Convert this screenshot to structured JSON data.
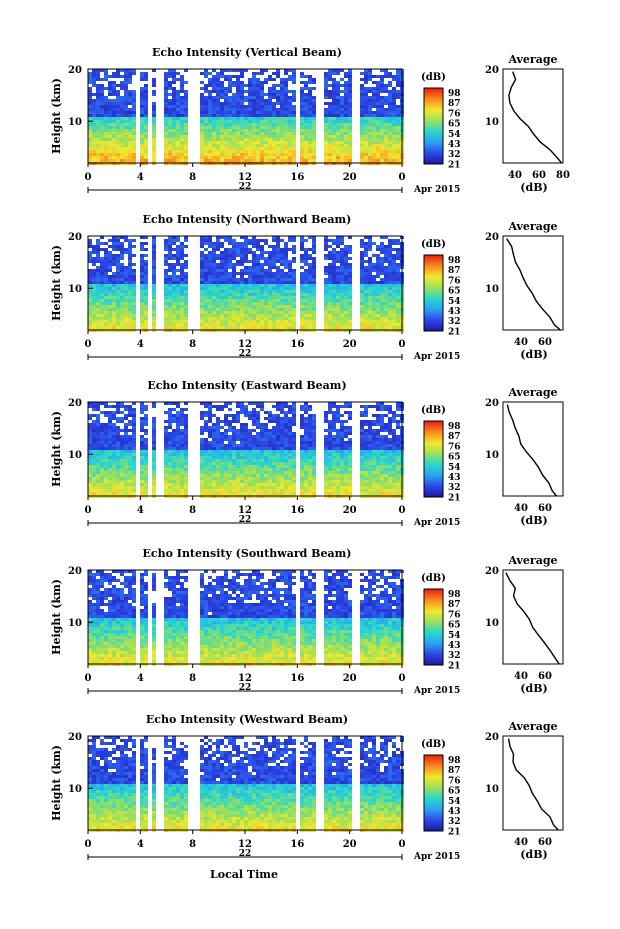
{
  "figure": {
    "xlabel": "Local Time",
    "date_label": "22",
    "month_label": "Apr 2015",
    "ylabel": "Height (km)",
    "colorbar_unit": "(dB)",
    "colorbar_ticks": [
      "98",
      "87",
      "76",
      "65",
      "54",
      "43",
      "32",
      "21"
    ],
    "avg_title": "Average",
    "avg_xlabel": "(dB)"
  },
  "chart_data": [
    {
      "type": "heatmap",
      "title": "Echo Intensity (Vertical Beam)",
      "xlabel": "Local Time",
      "ylabel": "Height (km)",
      "x_ticks": [
        "0",
        "4",
        "8",
        "12",
        "16",
        "20",
        "0"
      ],
      "y_ticks": [
        "20",
        "10"
      ],
      "xlim": [
        0,
        24
      ],
      "ylim": [
        2,
        20
      ],
      "colorbar": {
        "label": "(dB)",
        "range": [
          21,
          98
        ],
        "ticks": [
          98,
          87,
          76,
          65,
          54,
          43,
          32,
          21
        ]
      },
      "gaps_hours": [
        [
          3.5,
          3.9
        ],
        [
          4.5,
          4.8
        ],
        [
          5.0,
          5.8
        ],
        [
          7.6,
          8.4
        ],
        [
          15.8,
          16.2
        ],
        [
          17.4,
          17.8
        ],
        [
          20.0,
          20.5
        ]
      ],
      "profile": {
        "title": "Average",
        "xlabel": "(dB)",
        "xlim": [
          30,
          80
        ],
        "x_ticks": [
          "40",
          "60",
          "80"
        ],
        "height": [
          19.5,
          18,
          16.5,
          15,
          13.5,
          12,
          10.5,
          9,
          7.5,
          6,
          4.5,
          3,
          2
        ],
        "value": [
          38,
          40,
          36,
          34,
          36,
          40,
          44,
          50,
          56,
          62,
          70,
          76,
          80
        ]
      }
    },
    {
      "type": "heatmap",
      "title": "Echo Intensity (Northward Beam)",
      "xlabel": "Local Time",
      "ylabel": "Height (km)",
      "x_ticks": [
        "0",
        "4",
        "8",
        "12",
        "16",
        "20",
        "0"
      ],
      "y_ticks": [
        "20",
        "10"
      ],
      "xlim": [
        0,
        24
      ],
      "ylim": [
        2,
        20
      ],
      "colorbar": {
        "label": "(dB)",
        "range": [
          21,
          98
        ],
        "ticks": [
          98,
          87,
          76,
          65,
          54,
          43,
          32,
          21
        ]
      },
      "gaps_hours": [
        [
          3.5,
          3.9
        ],
        [
          4.5,
          4.8
        ],
        [
          5.0,
          5.8
        ],
        [
          7.6,
          8.4
        ],
        [
          15.8,
          16.2
        ],
        [
          17.4,
          17.8
        ],
        [
          20.0,
          20.5
        ]
      ],
      "profile": {
        "title": "Average",
        "xlabel": "(dB)",
        "xlim": [
          25,
          75
        ],
        "x_ticks": [
          "40",
          "60"
        ],
        "height": [
          19.5,
          18,
          16.5,
          15,
          13.5,
          12,
          10.5,
          9,
          7.5,
          6,
          4.5,
          3,
          2
        ],
        "value": [
          28,
          31,
          34,
          35,
          38,
          42,
          46,
          50,
          54,
          58,
          63,
          68,
          72
        ]
      }
    },
    {
      "type": "heatmap",
      "title": "Echo Intensity (Eastward Beam)",
      "xlabel": "Local Time",
      "ylabel": "Height (km)",
      "x_ticks": [
        "0",
        "4",
        "8",
        "12",
        "16",
        "20",
        "0"
      ],
      "y_ticks": [
        "20",
        "10"
      ],
      "xlim": [
        0,
        24
      ],
      "ylim": [
        2,
        20
      ],
      "colorbar": {
        "label": "(dB)",
        "range": [
          21,
          98
        ],
        "ticks": [
          98,
          87,
          76,
          65,
          54,
          43,
          32,
          21
        ]
      },
      "gaps_hours": [
        [
          3.5,
          3.9
        ],
        [
          4.5,
          4.8
        ],
        [
          5.0,
          5.8
        ],
        [
          7.6,
          8.4
        ],
        [
          15.8,
          16.2
        ],
        [
          17.4,
          17.8
        ],
        [
          20.0,
          20.5
        ]
      ],
      "profile": {
        "title": "Average",
        "xlabel": "(dB)",
        "xlim": [
          25,
          75
        ],
        "x_ticks": [
          "40",
          "60"
        ],
        "height": [
          19.5,
          18,
          16.5,
          15,
          13.5,
          12,
          10.5,
          9,
          7.5,
          6,
          4.5,
          3,
          2
        ],
        "value": [
          28,
          30,
          34,
          36,
          38,
          41,
          45,
          50,
          54,
          58,
          62,
          67,
          70
        ]
      }
    },
    {
      "type": "heatmap",
      "title": "Echo Intensity (Southward Beam)",
      "xlabel": "Local Time",
      "ylabel": "Height (km)",
      "x_ticks": [
        "0",
        "4",
        "8",
        "12",
        "16",
        "20",
        "0"
      ],
      "y_ticks": [
        "20",
        "10"
      ],
      "xlim": [
        0,
        24
      ],
      "ylim": [
        2,
        20
      ],
      "colorbar": {
        "label": "(dB)",
        "range": [
          21,
          98
        ],
        "ticks": [
          98,
          87,
          76,
          65,
          54,
          43,
          32,
          21
        ]
      },
      "gaps_hours": [
        [
          3.5,
          3.9
        ],
        [
          4.5,
          4.8
        ],
        [
          5.0,
          5.8
        ],
        [
          7.6,
          8.4
        ],
        [
          15.8,
          16.2
        ],
        [
          17.4,
          17.8
        ],
        [
          20.0,
          20.5
        ]
      ],
      "profile": {
        "title": "Average",
        "xlabel": "(dB)",
        "xlim": [
          25,
          75
        ],
        "x_ticks": [
          "40",
          "60"
        ],
        "height": [
          19.5,
          18,
          16.5,
          15,
          13.5,
          12,
          10.5,
          9,
          7.5,
          6,
          4.5,
          3,
          2
        ],
        "value": [
          28,
          31,
          36,
          34,
          38,
          42,
          46,
          50,
          54,
          59,
          64,
          69,
          72
        ]
      }
    },
    {
      "type": "heatmap",
      "title": "Echo Intensity (Westward Beam)",
      "xlabel": "Local Time",
      "ylabel": "Height (km)",
      "x_ticks": [
        "0",
        "4",
        "8",
        "12",
        "16",
        "20",
        "0"
      ],
      "y_ticks": [
        "20",
        "10"
      ],
      "xlim": [
        0,
        24
      ],
      "ylim": [
        2,
        20
      ],
      "colorbar": {
        "label": "(dB)",
        "range": [
          21,
          98
        ],
        "ticks": [
          98,
          87,
          76,
          65,
          54,
          43,
          32,
          21
        ]
      },
      "gaps_hours": [
        [
          3.5,
          3.9
        ],
        [
          4.5,
          4.8
        ],
        [
          5.0,
          5.8
        ],
        [
          7.6,
          8.4
        ],
        [
          15.8,
          16.2
        ],
        [
          17.4,
          17.8
        ],
        [
          20.0,
          20.5
        ]
      ],
      "profile": {
        "title": "Average",
        "xlabel": "(dB)",
        "xlim": [
          25,
          75
        ],
        "x_ticks": [
          "40",
          "60"
        ],
        "height": [
          19.5,
          18,
          16.5,
          15,
          13.5,
          12,
          10.5,
          9,
          7.5,
          6,
          4.5,
          3,
          2
        ],
        "value": [
          29,
          32,
          33,
          34,
          37,
          42,
          46,
          50,
          54,
          58,
          63,
          68,
          71
        ]
      }
    }
  ]
}
